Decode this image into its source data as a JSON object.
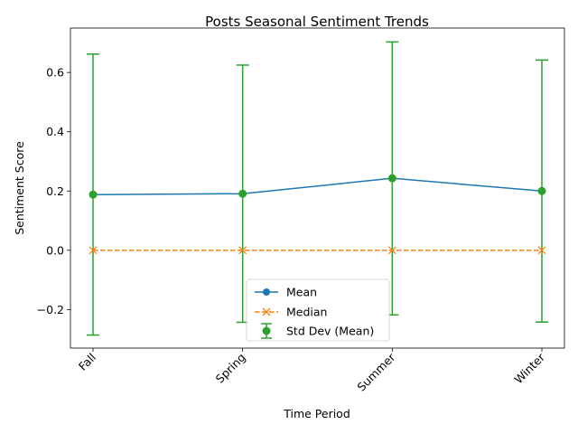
{
  "chart_data": {
    "type": "line",
    "title": "Posts Seasonal Sentiment Trends",
    "xlabel": "Time Period",
    "ylabel": "Sentiment Score",
    "categories": [
      "Fall",
      "Spring",
      "Summer",
      "Winter"
    ],
    "ylim": [
      -0.33,
      0.75
    ],
    "yticks": [
      -0.2,
      0.0,
      0.2,
      0.4,
      0.6
    ],
    "ytick_labels": [
      "−0.2",
      "0.0",
      "0.2",
      "0.4",
      "0.6"
    ],
    "grid": false,
    "legend_position": "lower-center",
    "series": [
      {
        "name": "Mean",
        "values": [
          0.188,
          0.191,
          0.243,
          0.2
        ],
        "color": "#1f77b4",
        "marker": "circle",
        "style": "solid"
      },
      {
        "name": "Median",
        "values": [
          0.0,
          0.0,
          0.0,
          0.0
        ],
        "color": "#ff7f0e",
        "marker": "x",
        "style": "dashed"
      },
      {
        "name": "Std Dev (Mean)",
        "values": [
          0.188,
          0.191,
          0.243,
          0.2
        ],
        "err_low": [
          -0.286,
          -0.243,
          -0.218,
          -0.242
        ],
        "err_high": [
          0.662,
          0.625,
          0.703,
          0.642
        ],
        "color": "#2ca02c",
        "marker": "circle",
        "style": "errorbar"
      }
    ]
  }
}
